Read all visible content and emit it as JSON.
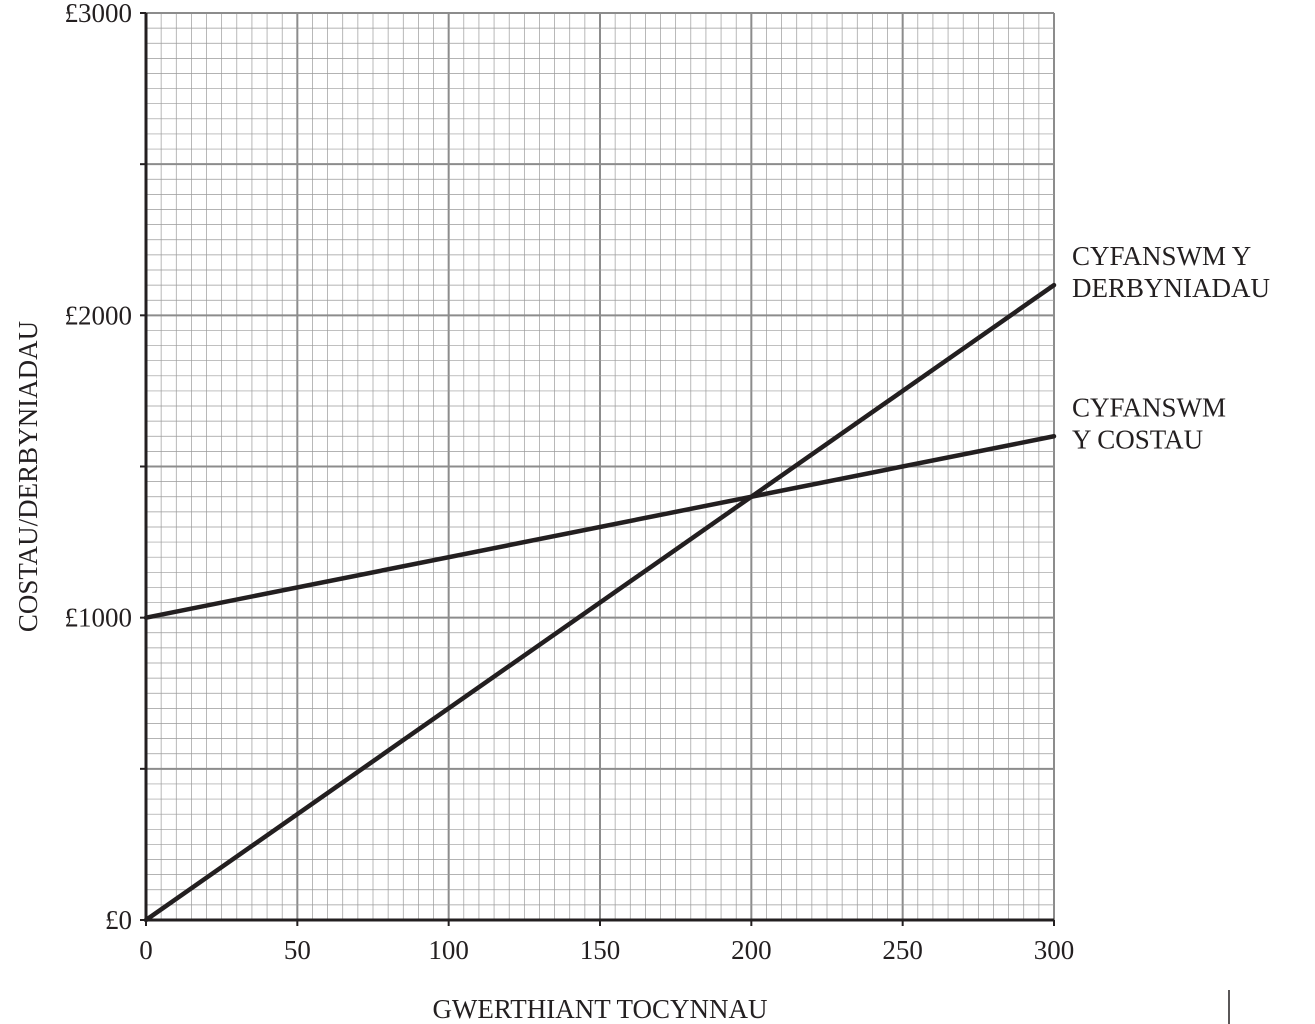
{
  "chart_data": {
    "type": "line",
    "xlabel": "GWERTHIANT TOCYNNAU",
    "ylabel": "COSTAU/DERBYNIADAU",
    "xlim": [
      0,
      300
    ],
    "ylim": [
      0,
      3000
    ],
    "x_ticks": [
      0,
      50,
      100,
      150,
      200,
      250,
      300
    ],
    "x_tick_labels": [
      "0",
      "50",
      "100",
      "150",
      "200",
      "250",
      "300"
    ],
    "y_ticks": [
      0,
      1000,
      2000,
      3000
    ],
    "y_tick_labels": [
      "£0",
      "£1000",
      "£2000",
      "£3000"
    ],
    "grid": true,
    "series": [
      {
        "name": "CYFANSWM Y DERBYNIADAU",
        "label_lines": [
          "CYFANSWM Y",
          "DERBYNIADAU"
        ],
        "x": [
          0,
          300
        ],
        "y": [
          0,
          2100
        ]
      },
      {
        "name": "CYFANSWM Y COSTAU",
        "label_lines": [
          "CYFANSWM",
          "Y COSTAU"
        ],
        "x": [
          0,
          300
        ],
        "y": [
          1000,
          1600
        ]
      }
    ]
  }
}
